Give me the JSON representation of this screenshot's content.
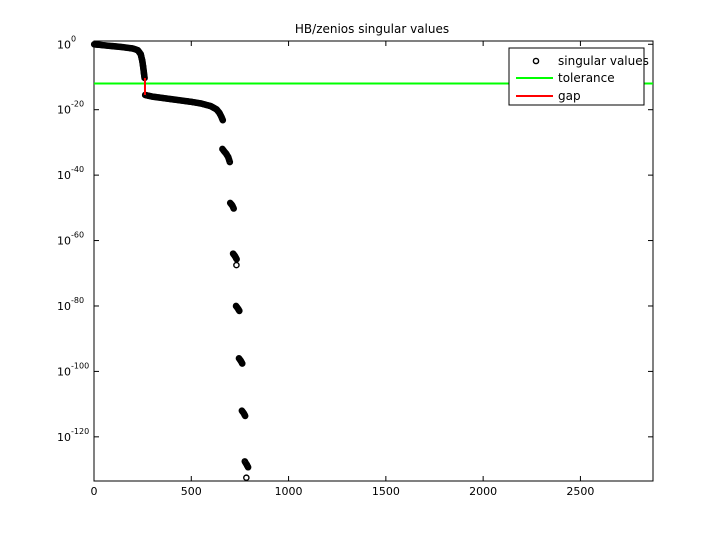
{
  "chart_data": {
    "type": "scatter",
    "title": "HB/zenios singular values",
    "xlabel": "",
    "ylabel": "",
    "xlim": [
      0,
      2873
    ],
    "ylim_log10": [
      -133.5,
      1
    ],
    "y_scale": "log",
    "grid": false,
    "legend_position": "top-right",
    "x_ticks": [
      {
        "value": 0,
        "label": "0"
      },
      {
        "value": 500,
        "label": "500"
      },
      {
        "value": 1000,
        "label": "1000"
      },
      {
        "value": 1500,
        "label": "1500"
      },
      {
        "value": 2000,
        "label": "2000"
      },
      {
        "value": 2500,
        "label": "2500"
      }
    ],
    "y_ticks": [
      {
        "log10": 0,
        "base": "10",
        "exponent": "0"
      },
      {
        "log10": -20,
        "base": "10",
        "exponent": "-20"
      },
      {
        "log10": -40,
        "base": "10",
        "exponent": "-40"
      },
      {
        "log10": -60,
        "base": "10",
        "exponent": "-60"
      },
      {
        "log10": -80,
        "base": "10",
        "exponent": "-80"
      },
      {
        "log10": -100,
        "base": "10",
        "exponent": "-100"
      },
      {
        "log10": -120,
        "base": "10",
        "exponent": "-120"
      }
    ],
    "series": [
      {
        "name": "singular values",
        "marker": "circle",
        "color": "#000000",
        "segments": [
          {
            "x": [
              1,
              50,
              100,
              150,
              200,
              225,
              240,
              248,
              253,
              257,
              260
            ],
            "log10_y": [
              0,
              -0.3,
              -0.6,
              -0.9,
              -1.3,
              -1.8,
              -3,
              -5,
              -7,
              -9,
              -10.3
            ]
          },
          {
            "x": [
              263,
              300,
              350,
              400,
              450,
              500,
              550,
              600,
              630,
              645,
              655,
              662
            ],
            "log10_y": [
              -15.5,
              -16.0,
              -16.4,
              -16.8,
              -17.2,
              -17.6,
              -18.1,
              -18.9,
              -19.9,
              -21.0,
              -22.2,
              -23.2
            ]
          },
          {
            "x": [
              660,
              670,
              680,
              690,
              698
            ],
            "log10_y": [
              -32,
              -32.8,
              -33.5,
              -34.5,
              -36
            ]
          },
          {
            "x": [
              700,
              710,
              718
            ],
            "log10_y": [
              -48.5,
              -49.2,
              -50.2
            ]
          },
          {
            "x": [
              715,
              725,
              733
            ],
            "log10_y": [
              -64,
              -64.8,
              -65.7
            ]
          },
          {
            "x": [
              730,
              740,
              747
            ],
            "log10_y": [
              -80,
              -80.8,
              -81.5
            ]
          },
          {
            "x": [
              745,
              755,
              762
            ],
            "log10_y": [
              -96,
              -96.8,
              -97.6
            ]
          },
          {
            "x": [
              760,
              770,
              777
            ],
            "log10_y": [
              -112,
              -112.8,
              -113.6
            ]
          },
          {
            "x": [
              775,
              785,
              792
            ],
            "log10_y": [
              -127.5,
              -128.5,
              -129.3
            ]
          }
        ],
        "isolated": [
          {
            "x": 732,
            "log10_y": -67.5
          },
          {
            "x": 783,
            "log10_y": -132.5
          }
        ]
      },
      {
        "name": "tolerance",
        "color": "#00ff00",
        "log10_y": -12
      },
      {
        "name": "gap",
        "color": "#ff0000",
        "x": 262,
        "log10_y_range": [
          -10.3,
          -15.5
        ]
      }
    ],
    "legend": [
      "singular values",
      "tolerance",
      "gap"
    ]
  }
}
